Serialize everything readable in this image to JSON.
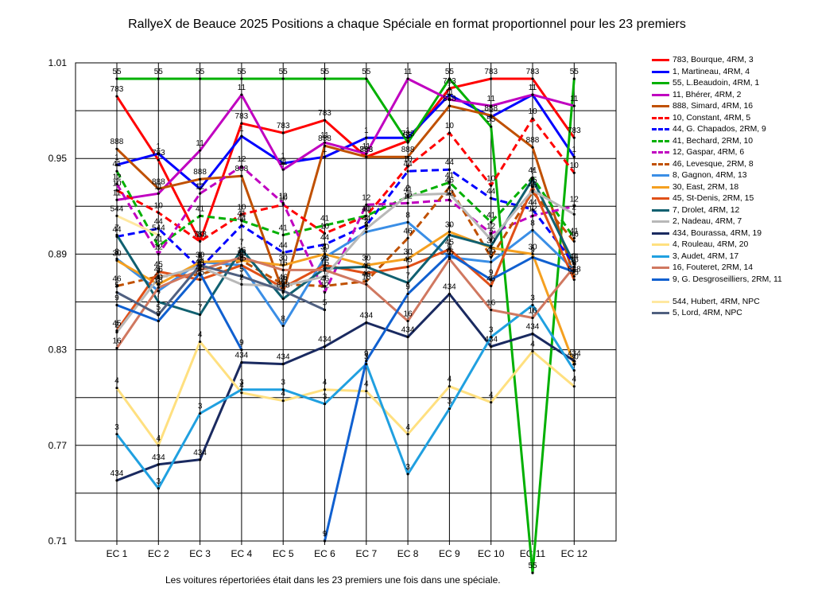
{
  "title": "RallyeX de Beauce 2025  Positions a chaque Spéciale en format proportionnel pour les 23 premiers",
  "footer": "Les voitures répertoriées était dans les 23 premiers une fois dans une spéciale.",
  "chart_data": {
    "type": "line",
    "title": "RallyeX de Beauce 2025  Positions a chaque Spéciale en format proportionnel pour les 23 premiers",
    "xlabel": "",
    "ylabel": "",
    "categories": [
      "EC 1",
      "EC 2",
      "EC 3",
      "EC 4",
      "EC 5",
      "EC 6",
      "EC 7",
      "EC 8",
      "EC 9",
      "EC 10",
      "EC 11",
      "EC 12"
    ],
    "y_tick_labels": [
      "1.01",
      "0.95",
      "0.89",
      "0.83",
      "0.77",
      "0.71"
    ],
    "ylim": [
      0.71,
      1.01
    ],
    "grid": true,
    "legend": "right",
    "series": [
      {
        "name": "783, Bourque, 4RM, 3",
        "label": "783",
        "color": "#ff0000",
        "dash": false,
        "values": [
          0.989,
          0.949,
          0.898,
          0.972,
          0.966,
          0.974,
          0.951,
          0.961,
          0.994,
          1.0,
          1.0,
          0.963
        ]
      },
      {
        "name": "1, Martineau, 4RM, 4",
        "label": "1",
        "color": "#0000ff",
        "dash": false,
        "values": [
          0.946,
          0.953,
          0.931,
          0.964,
          0.947,
          0.951,
          0.963,
          0.963,
          0.99,
          0.976,
          0.99,
          0.951
        ]
      },
      {
        "name": "55, L.Beaudoin, 4RM, 1",
        "label": "55",
        "color": "#00b000",
        "dash": false,
        "values": [
          1.0,
          1.0,
          1.0,
          1.0,
          1.0,
          1.0,
          1.0,
          0.96,
          1.0,
          0.97,
          0.69,
          1.0
        ]
      },
      {
        "name": "11, Bhérer, 4RM, 2",
        "label": "11",
        "color": "#c000c0",
        "dash": false,
        "values": [
          0.924,
          0.928,
          0.955,
          0.99,
          0.943,
          0.96,
          0.953,
          1.0,
          0.987,
          0.983,
          0.99,
          0.983
        ]
      },
      {
        "name": "888, Simard, 4RM, 16",
        "label": "888",
        "color": "#c05000",
        "dash": false,
        "values": [
          0.956,
          0.931,
          0.937,
          0.939,
          0.866,
          0.958,
          0.951,
          0.951,
          0.983,
          0.977,
          0.957,
          0.876
        ]
      },
      {
        "name": "10, Constant, 4RM, 5",
        "label": "10",
        "color": "#ff0000",
        "dash": true,
        "values": [
          0.93,
          0.916,
          0.898,
          0.915,
          0.921,
          0.903,
          0.914,
          0.945,
          0.966,
          0.933,
          0.975,
          0.941
        ]
      },
      {
        "name": "44, G. Chapados, 2RM, 9",
        "label": "44",
        "color": "#0000ff",
        "dash": true,
        "values": [
          0.901,
          0.906,
          0.881,
          0.908,
          0.891,
          0.896,
          0.908,
          0.942,
          0.943,
          0.925,
          0.918,
          0.884
        ]
      },
      {
        "name": "41, Bechard, 2RM, 10",
        "label": "41",
        "color": "#00b000",
        "dash": true,
        "values": [
          0.942,
          0.895,
          0.914,
          0.911,
          0.902,
          0.908,
          0.914,
          0.926,
          0.935,
          0.91,
          0.938,
          0.9
        ]
      },
      {
        "name": "12, Gaspar, 4RM, 6",
        "label": "12",
        "color": "#c000c0",
        "dash": true,
        "values": [
          0.934,
          0.89,
          0.928,
          0.945,
          0.922,
          0.866,
          0.921,
          0.922,
          0.924,
          0.903,
          0.914,
          0.92
        ]
      },
      {
        "name": "46, Levesque, 2RM, 8",
        "label": "46",
        "color": "#c05000",
        "dash": true,
        "values": [
          0.87,
          0.876,
          0.877,
          0.886,
          0.871,
          0.87,
          0.873,
          0.9,
          0.932,
          0.888,
          0.929,
          0.898
        ]
      },
      {
        "name": "8, Gagnon, 4RM, 13",
        "label": "8",
        "color": "#3a8ee6",
        "dash": false,
        "values": [
          0.887,
          0.867,
          0.885,
          0.883,
          0.845,
          0.888,
          0.904,
          0.91,
          0.888,
          0.885,
          0.905,
          0.88
        ]
      },
      {
        "name": "30, East, 2RM, 18",
        "label": "30",
        "color": "#f5a020",
        "dash": false,
        "values": [
          0.886,
          0.871,
          0.885,
          0.886,
          0.883,
          0.89,
          0.883,
          0.887,
          0.904,
          0.894,
          0.89,
          0.821
        ]
      },
      {
        "name": "45, St-Denis, 2RM, 15",
        "label": "45",
        "color": "#e05018",
        "dash": false,
        "values": [
          0.842,
          0.879,
          0.874,
          0.883,
          0.869,
          0.883,
          0.878,
          0.882,
          0.893,
          0.87,
          0.932,
          0.874
        ]
      },
      {
        "name": "7, Drolet, 4RM, 12",
        "label": "7",
        "color": "#106070",
        "dash": false,
        "values": [
          0.902,
          0.86,
          0.852,
          0.893,
          0.862,
          0.881,
          0.882,
          0.872,
          0.902,
          0.895,
          0.937,
          0.884
        ]
      },
      {
        "name": "2, Nadeau, 4RM, 7",
        "label": "2",
        "color": "#b8b8b8",
        "dash": false,
        "values": [
          0.841,
          0.875,
          0.882,
          0.871,
          0.87,
          0.876,
          0.906,
          0.927,
          0.928,
          0.899,
          0.93,
          0.915
        ]
      },
      {
        "name": "434, Bourassa, 4RM, 19",
        "label": "434",
        "color": "#1a2a60",
        "dash": false,
        "values": [
          0.748,
          0.758,
          0.761,
          0.822,
          0.821,
          0.832,
          0.847,
          0.838,
          0.865,
          0.832,
          0.84,
          0.823
        ]
      },
      {
        "name": "4, Rouleau, 4RM, 20",
        "label": "4",
        "color": "#ffe080",
        "dash": false,
        "values": [
          0.806,
          0.77,
          0.835,
          0.803,
          0.798,
          0.805,
          0.804,
          0.777,
          0.807,
          0.797,
          0.829,
          0.807
        ]
      },
      {
        "name": "3, Audet, 4RM, 17",
        "label": "3",
        "color": "#20a0e0",
        "dash": false,
        "values": [
          0.777,
          0.743,
          0.79,
          0.805,
          0.805,
          0.796,
          0.821,
          0.752,
          0.793,
          0.838,
          0.858,
          0.817
        ]
      },
      {
        "name": "16, Fouteret, 2RM, 14",
        "label": "16",
        "color": "#d07860",
        "dash": false,
        "values": [
          0.831,
          0.869,
          0.88,
          0.888,
          0.88,
          0.88,
          0.871,
          0.848,
          0.887,
          0.855,
          0.85,
          0.882
        ]
      },
      {
        "name": "9, G. Desgroseilliers, 2RM, 11",
        "label": "9",
        "color": "#1060d0",
        "dash": false,
        "values": [
          0.858,
          0.848,
          0.878,
          0.83,
          null,
          0.71,
          0.823,
          0.865,
          0.89,
          0.874,
          0.888,
          0.879
        ]
      },
      {
        "name": "544, Hubert, 4RM,  NPC",
        "label": "544",
        "color": "#ffe8a0",
        "dash": false,
        "values": [
          0.914,
          0.902,
          null,
          null,
          null,
          null,
          null,
          null,
          null,
          null,
          null,
          null
        ]
      },
      {
        "name": "5, Lord, 4RM,  NPC",
        "label": "5",
        "color": "#506080",
        "dash": false,
        "values": [
          0.866,
          0.852,
          0.883,
          0.876,
          0.867,
          0.855,
          null,
          null,
          null,
          null,
          null,
          null
        ]
      }
    ]
  },
  "legend": {
    "items": [
      {
        "label": "783, Bourque, 4RM, 3",
        "color": "#ff0000",
        "dash": false
      },
      {
        "label": "1, Martineau, 4RM, 4",
        "color": "#0000ff",
        "dash": false
      },
      {
        "label": "55, L.Beaudoin, 4RM, 1",
        "color": "#00b000",
        "dash": false
      },
      {
        "label": "11, Bhérer, 4RM, 2",
        "color": "#c000c0",
        "dash": false
      },
      {
        "label": "888, Simard, 4RM, 16",
        "color": "#c05000",
        "dash": false
      },
      {
        "label": "10, Constant, 4RM, 5",
        "color": "#ff0000",
        "dash": true
      },
      {
        "label": "44, G. Chapados, 2RM, 9",
        "color": "#0000ff",
        "dash": true
      },
      {
        "label": "41, Bechard, 2RM, 10",
        "color": "#00b000",
        "dash": true
      },
      {
        "label": "12, Gaspar, 4RM, 6",
        "color": "#c000c0",
        "dash": true
      },
      {
        "label": "46, Levesque, 2RM, 8",
        "color": "#c05000",
        "dash": true
      },
      {
        "label": "8, Gagnon, 4RM, 13",
        "color": "#3a8ee6",
        "dash": false
      },
      {
        "label": "30, East, 2RM, 18",
        "color": "#f5a020",
        "dash": false
      },
      {
        "label": "45, St-Denis, 2RM, 15",
        "color": "#e05018",
        "dash": false
      },
      {
        "label": "7, Drolet, 4RM, 12",
        "color": "#106070",
        "dash": false
      },
      {
        "label": "2, Nadeau, 4RM, 7",
        "color": "#b8b8b8",
        "dash": false
      },
      {
        "label": "434, Bourassa, 4RM, 19",
        "color": "#1a2a60",
        "dash": false
      },
      {
        "label": "4, Rouleau, 4RM, 20",
        "color": "#ffe080",
        "dash": false
      },
      {
        "label": "3, Audet, 4RM, 17",
        "color": "#20a0e0",
        "dash": false
      },
      {
        "label": "16, Fouteret, 2RM, 14",
        "color": "#d07860",
        "dash": false
      },
      {
        "label": "9, G. Desgroseilliers, 2RM, 11",
        "color": "#1060d0",
        "dash": false
      },
      {
        "label": "544, Hubert, 4RM,  NPC",
        "color": "#ffe8a0",
        "dash": false
      },
      {
        "label": "5, Lord, 4RM,  NPC",
        "color": "#506080",
        "dash": false
      }
    ]
  }
}
